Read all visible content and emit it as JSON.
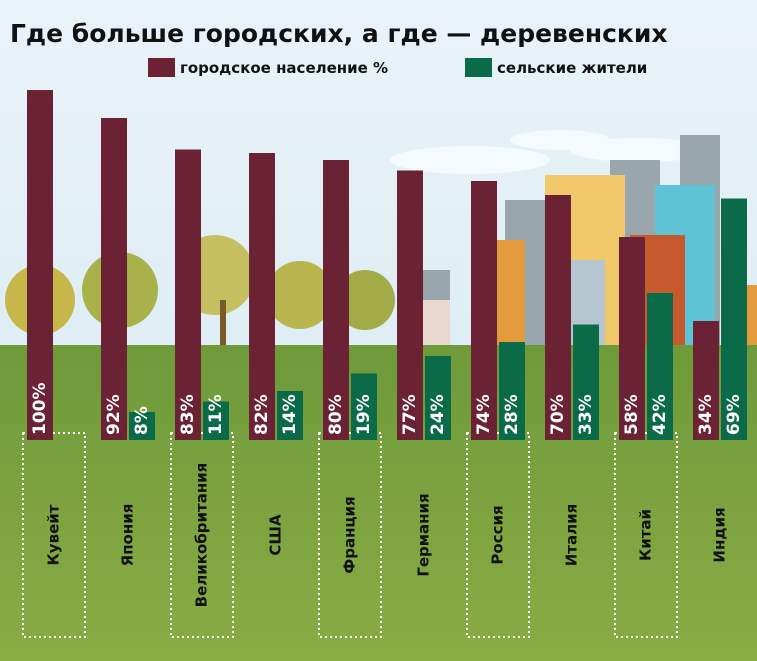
{
  "chart_data": {
    "type": "bar",
    "title": "Где больше городских, а где — деревенских",
    "categories": [
      "Кувейт",
      "Япония",
      "Великобритания",
      "США",
      "Франция",
      "Германия",
      "Россия",
      "Италия",
      "Китай",
      "Индия"
    ],
    "series": [
      {
        "name": "городское население %",
        "color": "#6b2234",
        "values": [
          100,
          92,
          83,
          82,
          80,
          77,
          74,
          70,
          58,
          34
        ],
        "value_labels": [
          "100%",
          "92%",
          "83%",
          "82%",
          "80%",
          "77%",
          "74%",
          "70%",
          "58%",
          "34%"
        ]
      },
      {
        "name": "сельские жители",
        "color": "#0b6a48",
        "values": [
          null,
          8,
          11,
          14,
          19,
          24,
          28,
          33,
          42,
          69
        ],
        "value_labels": [
          null,
          "8%",
          "11%",
          "14%",
          "19%",
          "24%",
          "28%",
          "33%",
          "42%",
          "69%"
        ]
      }
    ],
    "ylim": [
      0,
      100
    ]
  }
}
